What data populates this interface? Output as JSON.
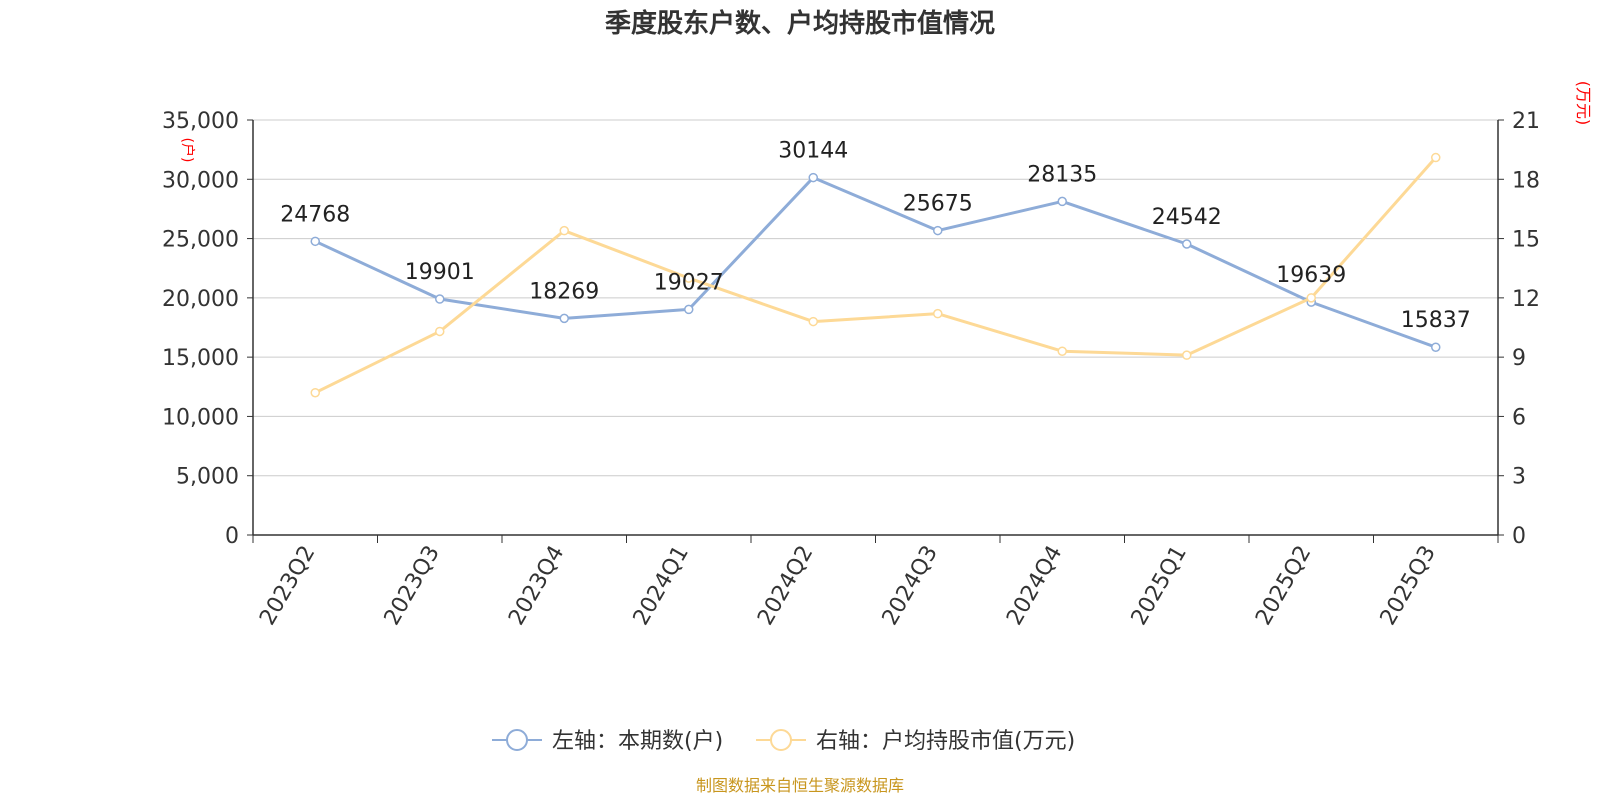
{
  "chart_data": {
    "type": "line",
    "title": "季度股东户数、户均持股市值情况",
    "categories": [
      "2023Q2",
      "2023Q3",
      "2023Q4",
      "2024Q1",
      "2024Q2",
      "2024Q3",
      "2024Q4",
      "2025Q1",
      "2025Q2",
      "2025Q3"
    ],
    "left_axis": {
      "unit": "(户)",
      "min": 0,
      "max": 35000,
      "ticks": [
        "0",
        "5,000",
        "10,000",
        "15,000",
        "20,000",
        "25,000",
        "30,000",
        "35,000"
      ]
    },
    "right_axis": {
      "unit": "(万元)",
      "min": 0,
      "max": 21,
      "ticks": [
        "0",
        "3",
        "6",
        "9",
        "12",
        "15",
        "18",
        "21"
      ]
    },
    "series": [
      {
        "name": "左轴：本期数(户)",
        "axis": "left",
        "color": "#8eacd8",
        "show_labels": true,
        "values": [
          24768,
          19901,
          18269,
          19027,
          30144,
          25675,
          28135,
          24542,
          19639,
          15837
        ]
      },
      {
        "name": "右轴：户均持股市值(万元)",
        "axis": "right",
        "color": "#fdd996",
        "show_labels": false,
        "values": [
          7.2,
          10.3,
          15.4,
          13.0,
          10.8,
          11.2,
          9.3,
          9.1,
          12.0,
          19.1
        ]
      }
    ],
    "grid": true,
    "legend_position": "bottom"
  },
  "source": "制图数据来自恒生聚源数据库",
  "colors": {
    "axis": "#333333",
    "grid": "#cccccc",
    "unit_label": "#ff0000",
    "source_text": "#c8961e",
    "label_text": "#222222"
  }
}
